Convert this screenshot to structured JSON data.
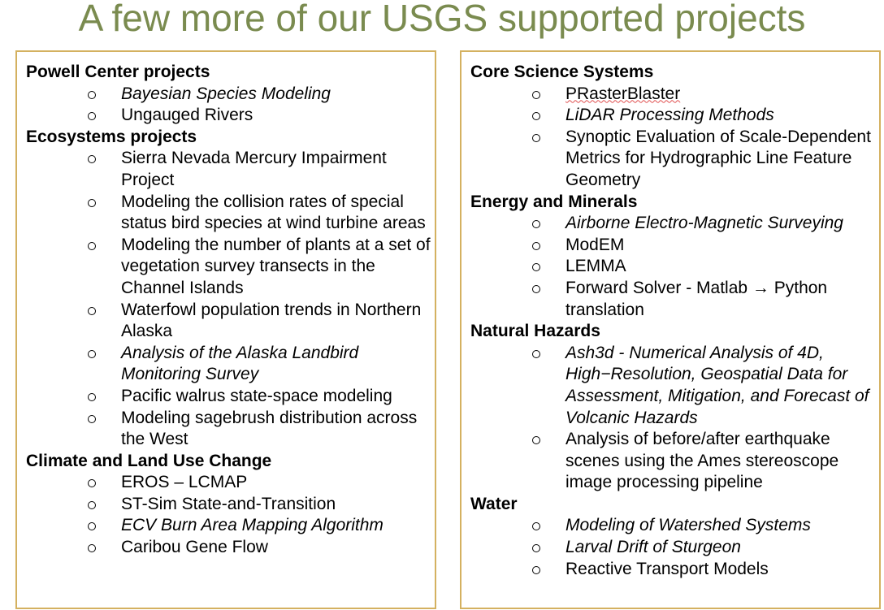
{
  "title": "A few more of our USGS supported projects",
  "left": [
    {
      "heading": "Powell Center projects",
      "items": [
        {
          "text": "Bayesian Species Modeling",
          "italic": true
        },
        {
          "text": "Ungauged Rivers",
          "italic": false
        }
      ]
    },
    {
      "heading": "Ecosystems projects",
      "items": [
        {
          "text": "Sierra Nevada Mercury Impairment Project",
          "italic": false
        },
        {
          "text": "Modeling the collision rates of special status bird species at wind turbine areas",
          "italic": false
        },
        {
          "text": "Modeling the number of plants at a set of vegetation survey transects in the Channel Islands",
          "italic": false
        },
        {
          "text": "Waterfowl population trends in Northern Alaska",
          "italic": false
        },
        {
          "text": "Analysis of the Alaska Landbird Monitoring Survey",
          "italic": true
        },
        {
          "text": "Pacific walrus state-space modeling",
          "italic": false
        },
        {
          "text": "Modeling sagebrush distribution across the West",
          "italic": false
        }
      ]
    },
    {
      "heading": "Climate and Land Use Change",
      "items": [
        {
          "text": "EROS – LCMAP",
          "italic": false
        },
        {
          "text": "ST-Sim State-and-Transition",
          "italic": false
        },
        {
          "text": "ECV Burn Area Mapping Algorithm",
          "italic": true
        },
        {
          "text": "Caribou Gene Flow",
          "italic": false
        }
      ]
    }
  ],
  "right": [
    {
      "heading": "Core Science Systems",
      "items": [
        {
          "text": "PRasterBlaster",
          "italic": false,
          "wavy": true
        },
        {
          "text": "LiDAR Processing Methods",
          "italic": true
        },
        {
          "text": "Synoptic Evaluation of Scale-Dependent Metrics for Hydrographic Line Feature Geometry",
          "italic": false
        }
      ]
    },
    {
      "heading": "Energy and Minerals",
      "items": [
        {
          "text": "Airborne Electro-Magnetic Surveying",
          "italic": true
        },
        {
          "text": "ModEM",
          "italic": false
        },
        {
          "text": "LEMMA",
          "italic": false
        },
        {
          "text": "Forward Solver - Matlab → Python translation",
          "italic": false
        }
      ]
    },
    {
      "heading": "Natural Hazards",
      "items": [
        {
          "text": "Ash3d - Numerical Analysis of 4D, High−Resolution, Geospatial Data for Assessment, Mitigation, and Forecast of Volcanic Hazards",
          "italic": true
        },
        {
          "text": "Analysis of before/after earthquake scenes using the Ames stereoscope image processing pipeline",
          "italic": false
        }
      ]
    },
    {
      "heading": "Water",
      "items": [
        {
          "text": "Modeling of Watershed Systems",
          "italic": true
        },
        {
          "text": "Larval Drift of Sturgeon",
          "italic": true
        },
        {
          "text": "Reactive Transport Models",
          "italic": false
        }
      ]
    }
  ]
}
